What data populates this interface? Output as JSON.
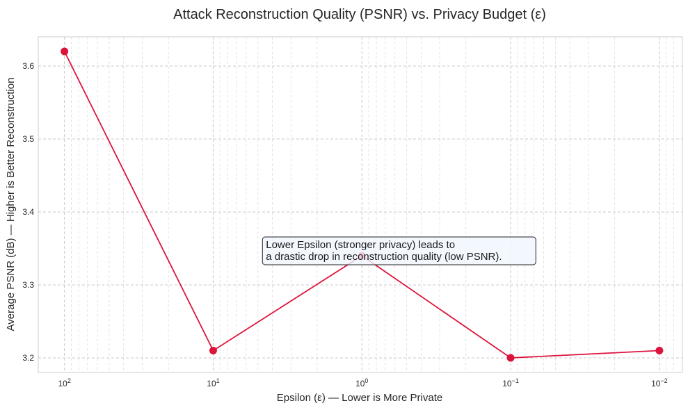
{
  "chart_data": {
    "type": "line",
    "title": "Attack Reconstruction Quality (PSNR) vs. Privacy Budget (ε)",
    "xlabel": "Epsilon (ε) — Lower is More Private",
    "ylabel": "Average PSNR (dB) — Higher is Better Reconstruction",
    "x_scale": "log",
    "x_inverted": true,
    "xlim": [
      150,
      0.007
    ],
    "ylim": [
      3.18,
      3.64
    ],
    "grid": true,
    "x_ticks": [
      {
        "value": 100,
        "base": "10",
        "exp": "2"
      },
      {
        "value": 10,
        "base": "10",
        "exp": "1"
      },
      {
        "value": 1,
        "base": "10",
        "exp": "0"
      },
      {
        "value": 0.1,
        "base": "10",
        "exp": "−1"
      },
      {
        "value": 0.01,
        "base": "10",
        "exp": "−2"
      }
    ],
    "y_ticks": [
      {
        "value": 3.2,
        "label": "3.2"
      },
      {
        "value": 3.3,
        "label": "3.3"
      },
      {
        "value": 3.4,
        "label": "3.4"
      },
      {
        "value": 3.5,
        "label": "3.5"
      },
      {
        "value": 3.6,
        "label": "3.6"
      }
    ],
    "series": [
      {
        "color": "#dc143c",
        "x": [
          100,
          10,
          1,
          0.1,
          0.01
        ],
        "y": [
          3.62,
          3.21,
          3.34,
          3.2,
          3.21
        ]
      }
    ],
    "annotation": {
      "lines": [
        "Lower Epsilon (stronger privacy) leads to",
        " a drastic drop in reconstruction quality (low PSNR)."
      ],
      "x": 1,
      "y": 3.34
    }
  }
}
